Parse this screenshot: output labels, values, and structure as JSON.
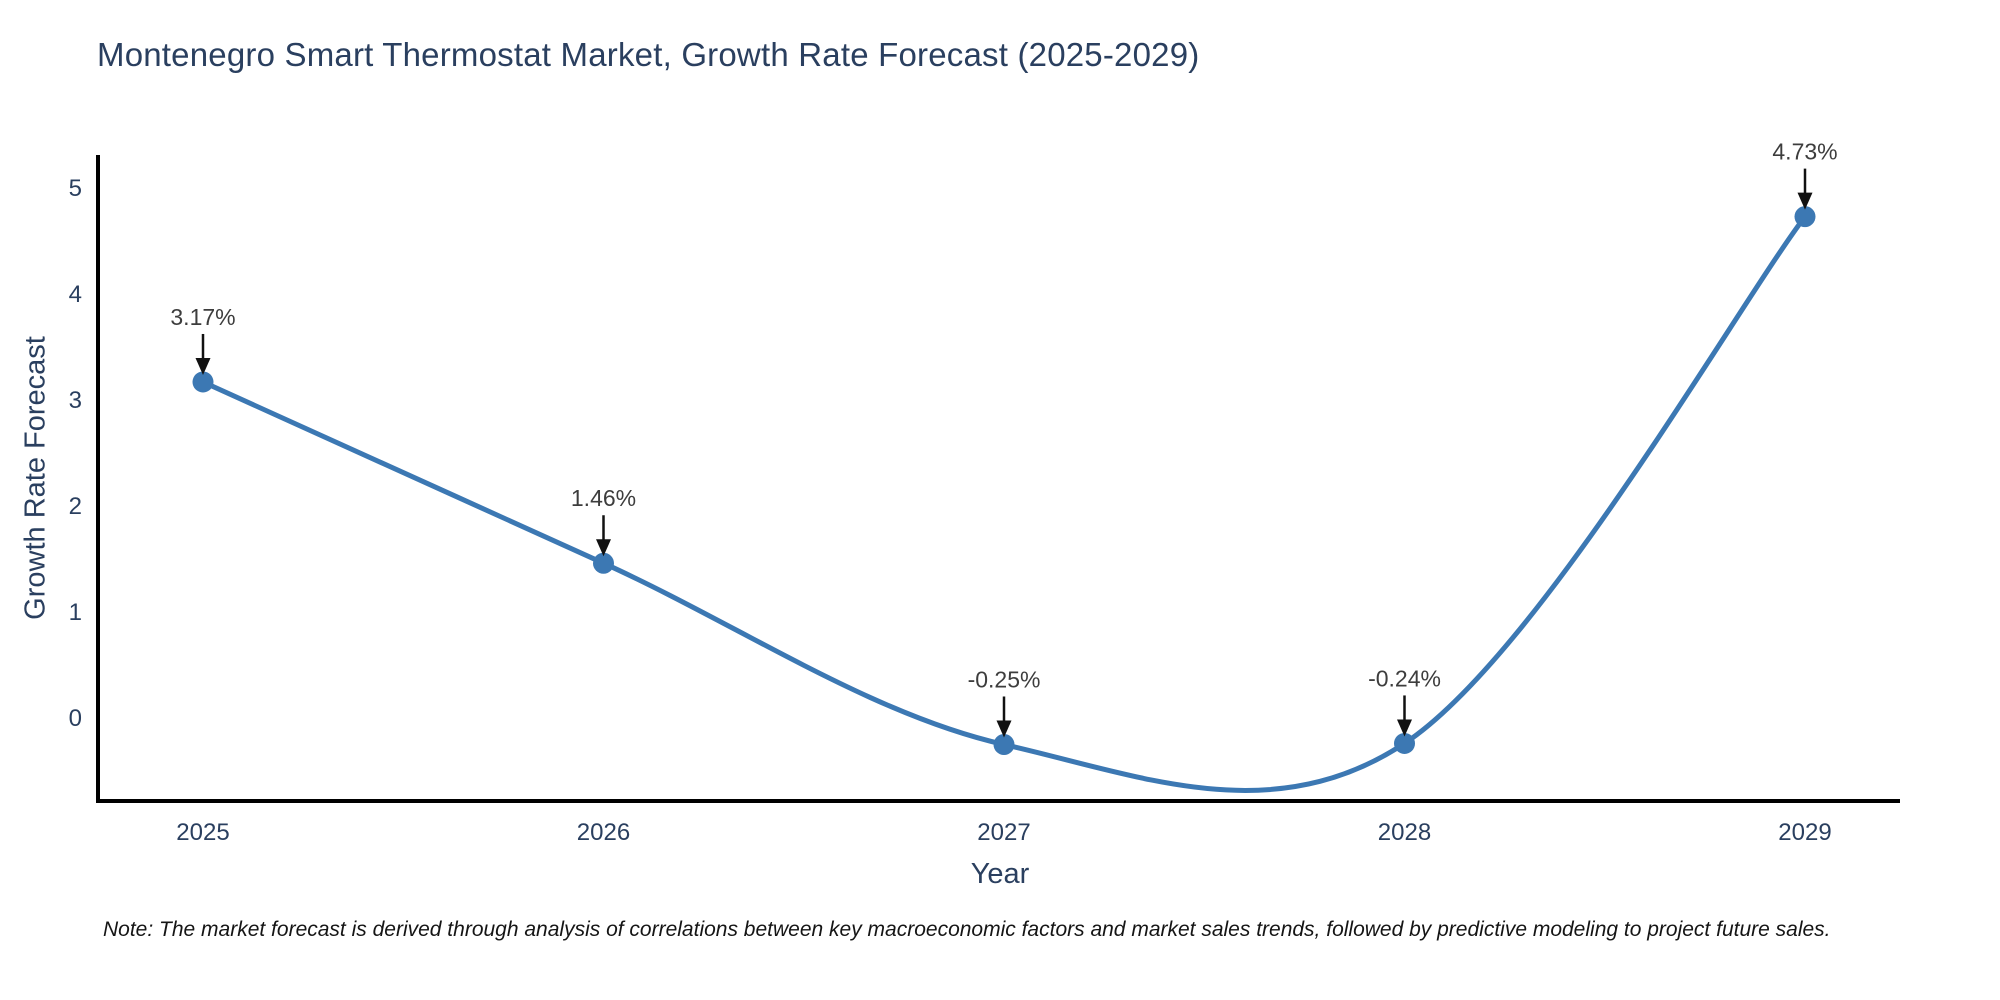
{
  "title": "Montenegro Smart Thermostat Market, Growth Rate Forecast (2025-2029)",
  "note": "Note: The market forecast is derived through analysis of correlations between key macroeconomic factors and market sales trends, followed by predictive modeling to project future sales.",
  "chart_data": {
    "type": "line",
    "title": "Montenegro Smart Thermostat Market, Growth Rate Forecast (2025-2029)",
    "xlabel": "Year",
    "ylabel": "Growth Rate Forecast",
    "categories": [
      "2025",
      "2026",
      "2027",
      "2028",
      "2029"
    ],
    "values": [
      3.17,
      1.46,
      -0.25,
      -0.24,
      4.73
    ],
    "point_labels": [
      "3.17%",
      "1.46%",
      "-0.25%",
      "-0.24%",
      "4.73%"
    ],
    "y_ticks": [
      0,
      1,
      2,
      3,
      4,
      5
    ],
    "ylim": [
      -0.78,
      5.3
    ],
    "line_shape": "spline",
    "markers": true,
    "grid": false,
    "legend": "none",
    "annotation_style": "value labels above points with downward black arrows",
    "colors": {
      "line": "#3c78b3",
      "marker": "#3c78b3",
      "axis": "#000000",
      "tick_text": "#2a3f5f",
      "annotation_text": "#3d3d3d",
      "arrow": "#111111",
      "background": "#ffffff"
    }
  }
}
